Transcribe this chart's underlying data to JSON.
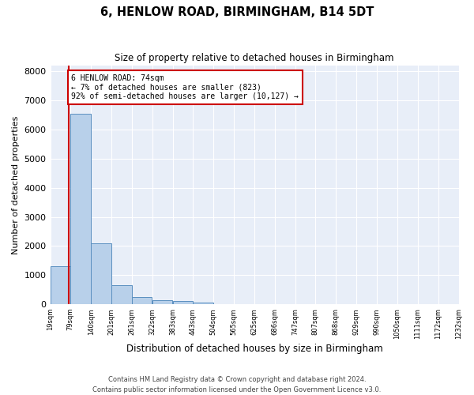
{
  "title": "6, HENLOW ROAD, BIRMINGHAM, B14 5DT",
  "subtitle": "Size of property relative to detached houses in Birmingham",
  "xlabel": "Distribution of detached houses by size in Birmingham",
  "ylabel": "Number of detached properties",
  "bar_color": "#b8d0ea",
  "bar_edge_color": "#5a8fc0",
  "background_color": "#e8eef8",
  "grid_color": "#ffffff",
  "annotation_line_color": "#cc0000",
  "annotation_box_color": "#ffffff",
  "annotation_box_edge": "#cc0000",
  "annotation_text_line1": "6 HENLOW ROAD: 74sqm",
  "annotation_text_line2": "← 7% of detached houses are smaller (823)",
  "annotation_text_line3": "92% of semi-detached houses are larger (10,127) →",
  "property_size_sqm": 74,
  "bin_edges": [
    19,
    79,
    140,
    201,
    261,
    322,
    383,
    443,
    504,
    565,
    625,
    686,
    747,
    807,
    868,
    929,
    990,
    1050,
    1111,
    1172,
    1232
  ],
  "bin_labels": [
    "19sqm",
    "79sqm",
    "140sqm",
    "201sqm",
    "261sqm",
    "322sqm",
    "383sqm",
    "443sqm",
    "504sqm",
    "565sqm",
    "625sqm",
    "686sqm",
    "747sqm",
    "807sqm",
    "868sqm",
    "929sqm",
    "990sqm",
    "1050sqm",
    "1111sqm",
    "1172sqm",
    "1232sqm"
  ],
  "bar_heights": [
    1300,
    6550,
    2080,
    660,
    260,
    140,
    100,
    60,
    0,
    0,
    0,
    0,
    0,
    0,
    0,
    0,
    0,
    0,
    0,
    0
  ],
  "ylim": [
    0,
    8200
  ],
  "yticks": [
    0,
    1000,
    2000,
    3000,
    4000,
    5000,
    6000,
    7000,
    8000
  ],
  "footer_line1": "Contains HM Land Registry data © Crown copyright and database right 2024.",
  "footer_line2": "Contains public sector information licensed under the Open Government Licence v3.0."
}
